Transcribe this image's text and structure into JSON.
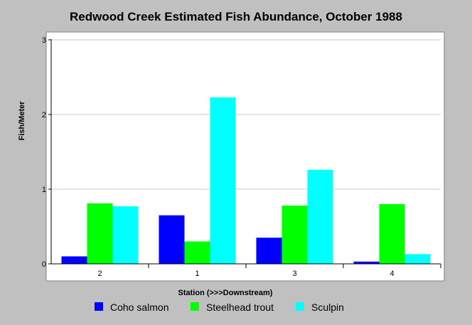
{
  "chart_data": {
    "type": "bar",
    "title": "Redwood Creek Estimated Fish Abundance, October 1988",
    "xlabel": "Station (>>>Downstream)",
    "ylabel": "Fish/Meter",
    "categories": [
      "2",
      "1",
      "3",
      "4"
    ],
    "series": [
      {
        "name": "Coho salmon",
        "color": "#0000ff",
        "values": [
          0.1,
          0.65,
          0.35,
          0.03
        ]
      },
      {
        "name": "Steelhead trout",
        "color": "#00ff00",
        "values": [
          0.81,
          0.3,
          0.78,
          0.8
        ]
      },
      {
        "name": "Sculpin",
        "color": "#00ffff",
        "values": [
          0.77,
          2.23,
          1.26,
          0.13
        ]
      }
    ],
    "ylim": [
      0,
      3
    ],
    "yticks": [
      "0",
      "1",
      "2",
      "3"
    ],
    "grid": true,
    "legend": "bottom",
    "background_color": "#c0c0c0",
    "plot_background": "#ffffff"
  }
}
